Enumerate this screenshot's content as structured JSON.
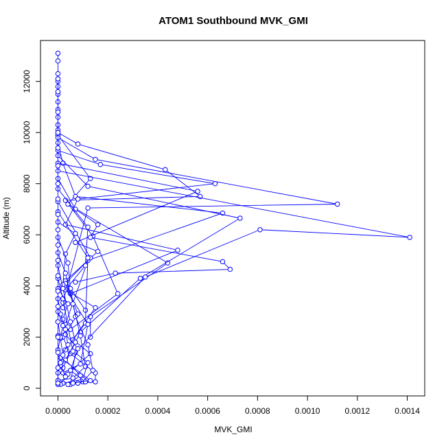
{
  "chart_data": {
    "type": "line",
    "title": "ATOM1 Southbound MVK_GMI",
    "xlabel": "MVK_GMI",
    "ylabel": "Altitude (m)",
    "xlim": [
      -7e-05,
      0.00147
    ],
    "ylim": [
      -300,
      13600
    ],
    "x_ticks": [
      0,
      0.0002,
      0.0004,
      0.0006,
      0.0008,
      0.001,
      0.0012,
      0.0014
    ],
    "x_tick_labels": [
      "0.0000",
      "0.0002",
      "0.0004",
      "0.0006",
      "0.0008",
      "0.0010",
      "0.0012",
      "0.0014"
    ],
    "y_ticks": [
      0,
      2000,
      4000,
      6000,
      8000,
      10000,
      12000
    ],
    "y_tick_labels": [
      "0",
      "2000",
      "4000",
      "6000",
      "8000",
      "10000",
      "12000"
    ],
    "grid": false,
    "marker": "open-circle",
    "line_color": "#0000ff",
    "series": [
      {
        "points": [
          [
            0,
            13100
          ],
          [
            0,
            12800
          ],
          [
            0,
            12300
          ],
          [
            0,
            12000
          ],
          [
            0,
            11800
          ],
          [
            0,
            11500
          ],
          [
            0,
            11200
          ],
          [
            0,
            10900
          ],
          [
            0,
            10600
          ],
          [
            0,
            10300
          ],
          [
            0,
            10100
          ],
          [
            0,
            9900
          ]
        ]
      },
      {
        "points": [
          [
            0,
            10000
          ],
          [
            8e-05,
            9550
          ],
          [
            0.00043,
            8550
          ],
          [
            0.00057,
            7500
          ],
          [
            3e-05,
            7350
          ],
          [
            0.00014,
            5950
          ],
          [
            0.00024,
            3700
          ],
          [
            5e-05,
            2300
          ],
          [
            0,
            2050
          ]
        ]
      },
      {
        "points": [
          [
            0,
            9900
          ],
          [
            0.00013,
            8200
          ],
          [
            4e-05,
            7200
          ],
          [
            0.00044,
            4900
          ],
          [
            0.00013,
            2800
          ],
          [
            0.00013,
            2000
          ]
        ]
      },
      {
        "points": [
          [
            0,
            9800
          ],
          [
            0.00015,
            8950
          ],
          [
            0.00112,
            7200
          ],
          [
            0.00012,
            7050
          ],
          [
            2e-05,
            3350
          ],
          [
            2e-05,
            3150
          ]
        ]
      },
      {
        "points": [
          [
            0,
            9600
          ],
          [
            2e-05,
            8800
          ],
          [
            7e-05,
            7500
          ],
          [
            0.00066,
            6850
          ],
          [
            0.00012,
            5000
          ],
          [
            3e-05,
            2500
          ]
        ]
      },
      {
        "points": [
          [
            0,
            9300
          ],
          [
            0.00017,
            8750
          ],
          [
            0.00063,
            8000
          ],
          [
            8e-05,
            7400
          ],
          [
            3e-05,
            6400
          ],
          [
            0.00048,
            5400
          ],
          [
            5e-05,
            3700
          ]
        ]
      },
      {
        "points": [
          [
            0,
            9100
          ],
          [
            0.00012,
            7900
          ],
          [
            0.00073,
            6650
          ],
          [
            0.00033,
            4300
          ],
          [
            9e-05,
            2200
          ],
          [
            2e-05,
            800
          ]
        ]
      },
      {
        "points": [
          [
            0,
            8800
          ],
          [
            0.00056,
            7700
          ],
          [
            7e-05,
            5700
          ],
          [
            0.00016,
            5350
          ],
          [
            3e-05,
            4200
          ],
          [
            0.00011,
            3050
          ]
        ]
      },
      {
        "points": [
          [
            0,
            8500
          ],
          [
            0.00141,
            5900
          ],
          [
            0.00081,
            6200
          ],
          [
            0.00035,
            4350
          ],
          [
            7e-05,
            1400
          ],
          [
            5e-05,
            150
          ]
        ]
      },
      {
        "points": [
          [
            0,
            8200
          ],
          [
            7e-05,
            7000
          ],
          [
            0.00016,
            6400
          ],
          [
            0.00013,
            5900
          ],
          [
            0.00066,
            4950
          ],
          [
            0.00069,
            4650
          ],
          [
            0.00023,
            4500
          ],
          [
            7e-05,
            4150
          ]
        ]
      },
      {
        "points": [
          [
            0,
            7800
          ],
          [
            0.00012,
            6300
          ],
          [
            0.00011,
            4800
          ],
          [
            3e-05,
            3850
          ],
          [
            0.00015,
            3150
          ],
          [
            6e-05,
            1900
          ],
          [
            0.00013,
            1350
          ],
          [
            4e-05,
            550
          ]
        ]
      },
      {
        "points": [
          [
            0,
            7300
          ],
          [
            0.00013,
            5100
          ],
          [
            3e-05,
            4100
          ],
          [
            8e-05,
            2900
          ],
          [
            2e-05,
            2000
          ],
          [
            5e-05,
            1350
          ],
          [
            1e-05,
            850
          ]
        ]
      },
      {
        "points": [
          [
            0,
            6900
          ],
          [
            0.00012,
            5100
          ],
          [
            0.00011,
            2550
          ],
          [
            3e-05,
            1500
          ],
          [
            0.00015,
            600
          ],
          [
            0.00015,
            250
          ],
          [
            8e-05,
            200
          ]
        ]
      },
      {
        "points": [
          [
            0,
            6500
          ],
          [
            7e-05,
            6050
          ],
          [
            3e-05,
            5250
          ],
          [
            2e-05,
            4050
          ],
          [
            0.00012,
            2500
          ],
          [
            9e-05,
            950
          ],
          [
            2e-05,
            600
          ]
        ]
      },
      {
        "points": [
          [
            0,
            5900
          ],
          [
            4e-05,
            4900
          ],
          [
            5e-05,
            3900
          ],
          [
            7e-05,
            2800
          ],
          [
            0.00012,
            1700
          ],
          [
            0.00014,
            700
          ],
          [
            0.0001,
            250
          ]
        ]
      },
      {
        "points": [
          [
            0,
            5300
          ],
          [
            3e-05,
            4500
          ],
          [
            6e-05,
            3300
          ],
          [
            9e-05,
            2050
          ],
          [
            0.00011,
            850
          ],
          [
            6e-05,
            400
          ],
          [
            0,
            300
          ]
        ]
      },
      {
        "points": [
          [
            0,
            4800
          ],
          [
            2e-05,
            3900
          ],
          [
            5e-05,
            2600
          ],
          [
            7e-05,
            1800
          ],
          [
            3e-05,
            1100
          ],
          [
            9e-05,
            500
          ],
          [
            4e-05,
            150
          ]
        ]
      },
      {
        "points": [
          [
            0,
            4300
          ],
          [
            2e-05,
            3500
          ],
          [
            4e-05,
            2400
          ],
          [
            6e-05,
            1450
          ],
          [
            0.00012,
            1000
          ],
          [
            0.0001,
            350
          ],
          [
            2e-05,
            200
          ]
        ]
      },
      {
        "points": [
          [
            0,
            3900
          ],
          [
            4e-05,
            3300
          ],
          [
            2e-05,
            2700
          ],
          [
            3e-05,
            2100
          ],
          [
            8e-05,
            1550
          ],
          [
            5e-05,
            700
          ],
          [
            0.00011,
            250
          ]
        ]
      },
      {
        "points": [
          [
            0,
            3500
          ],
          [
            1e-05,
            2900
          ],
          [
            3e-05,
            2300
          ],
          [
            4e-05,
            1700
          ],
          [
            1e-05,
            1200
          ],
          [
            0.00013,
            300
          ],
          [
            6e-05,
            200
          ]
        ]
      },
      {
        "points": [
          [
            0,
            3000
          ],
          [
            2e-05,
            2450
          ],
          [
            1e-05,
            1950
          ],
          [
            2e-05,
            1300
          ],
          [
            1e-05,
            900
          ],
          [
            3e-05,
            450
          ],
          [
            1e-05,
            150
          ]
        ]
      },
      {
        "points": [
          [
            0,
            2600
          ],
          [
            1e-05,
            2000
          ],
          [
            0,
            1500
          ],
          [
            1e-05,
            1000
          ],
          [
            0,
            600
          ],
          [
            0,
            300
          ],
          [
            0,
            150
          ]
        ]
      },
      {
        "points": [
          [
            0,
            12100
          ],
          [
            0,
            11600
          ],
          [
            0,
            10800
          ],
          [
            0,
            10000
          ],
          [
            0,
            9400
          ],
          [
            0,
            8700
          ],
          [
            0,
            8000
          ],
          [
            0,
            7400
          ],
          [
            0,
            6800
          ],
          [
            0,
            6200
          ],
          [
            0,
            5600
          ],
          [
            0,
            5000
          ],
          [
            0,
            4400
          ],
          [
            0,
            3800
          ],
          [
            0,
            3200
          ],
          [
            0,
            2600
          ],
          [
            0,
            2000
          ],
          [
            0,
            1400
          ],
          [
            0,
            800
          ],
          [
            0,
            200
          ]
        ]
      }
    ]
  }
}
